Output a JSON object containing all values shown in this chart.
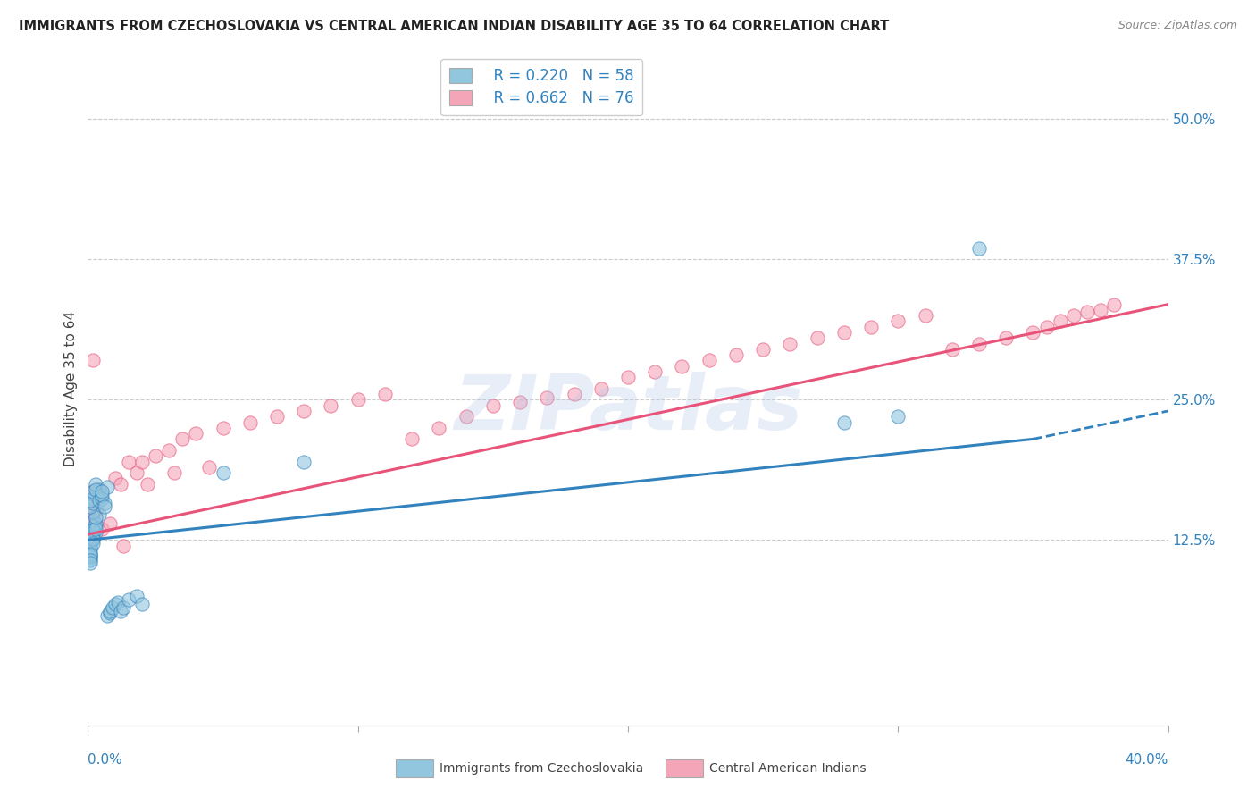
{
  "title": "IMMIGRANTS FROM CZECHOSLOVAKIA VS CENTRAL AMERICAN INDIAN DISABILITY AGE 35 TO 64 CORRELATION CHART",
  "source": "Source: ZipAtlas.com",
  "ylabel": "Disability Age 35 to 64",
  "xlim": [
    0.0,
    0.4
  ],
  "ylim": [
    -0.04,
    0.56
  ],
  "yticks_right": [
    0.125,
    0.25,
    0.375,
    0.5
  ],
  "yticklabels_right": [
    "12.5%",
    "25.0%",
    "37.5%",
    "50.0%"
  ],
  "legend_r1": "R = 0.220",
  "legend_n1": "N = 58",
  "legend_r2": "R = 0.662",
  "legend_n2": "N = 76",
  "color_blue": "#92c5de",
  "color_pink": "#f4a6b8",
  "line_color_blue": "#3182bd",
  "line_color_pink": "#e8537a",
  "watermark": "ZIPatlas",
  "background_color": "#ffffff",
  "grid_color": "#cccccc",
  "label1": "Immigrants from Czechoslovakia",
  "label2": "Central American Indians",
  "scatter1_x": [
    0.001,
    0.002,
    0.001,
    0.003,
    0.002,
    0.001,
    0.002,
    0.002,
    0.003,
    0.001,
    0.003,
    0.001,
    0.002,
    0.001,
    0.002,
    0.001,
    0.002,
    0.002,
    0.003,
    0.001,
    0.004,
    0.001,
    0.002,
    0.001,
    0.003,
    0.001,
    0.002,
    0.002,
    0.003,
    0.001,
    0.004,
    0.002,
    0.003,
    0.001,
    0.003,
    0.004,
    0.005,
    0.006,
    0.005,
    0.007,
    0.006,
    0.005,
    0.007,
    0.008,
    0.008,
    0.009,
    0.01,
    0.011,
    0.012,
    0.013,
    0.015,
    0.018,
    0.02,
    0.05,
    0.08,
    0.28,
    0.3,
    0.33
  ],
  "scatter1_y": [
    0.13,
    0.135,
    0.115,
    0.138,
    0.142,
    0.118,
    0.125,
    0.127,
    0.132,
    0.108,
    0.14,
    0.112,
    0.128,
    0.11,
    0.134,
    0.119,
    0.126,
    0.122,
    0.135,
    0.111,
    0.148,
    0.113,
    0.15,
    0.107,
    0.145,
    0.155,
    0.162,
    0.158,
    0.165,
    0.16,
    0.17,
    0.168,
    0.175,
    0.105,
    0.17,
    0.16,
    0.162,
    0.158,
    0.165,
    0.172,
    0.155,
    0.168,
    0.058,
    0.06,
    0.062,
    0.065,
    0.068,
    0.07,
    0.062,
    0.065,
    0.072,
    0.075,
    0.068,
    0.185,
    0.195,
    0.23,
    0.235,
    0.385
  ],
  "scatter2_x": [
    0.001,
    0.002,
    0.001,
    0.003,
    0.002,
    0.001,
    0.002,
    0.002,
    0.003,
    0.001,
    0.003,
    0.001,
    0.002,
    0.001,
    0.002,
    0.001,
    0.002,
    0.002,
    0.003,
    0.001,
    0.004,
    0.001,
    0.002,
    0.001,
    0.01,
    0.012,
    0.015,
    0.018,
    0.02,
    0.025,
    0.03,
    0.035,
    0.04,
    0.05,
    0.06,
    0.07,
    0.08,
    0.09,
    0.1,
    0.11,
    0.12,
    0.13,
    0.14,
    0.15,
    0.16,
    0.17,
    0.18,
    0.19,
    0.2,
    0.21,
    0.22,
    0.23,
    0.24,
    0.25,
    0.26,
    0.27,
    0.28,
    0.29,
    0.3,
    0.31,
    0.32,
    0.33,
    0.34,
    0.35,
    0.355,
    0.36,
    0.365,
    0.37,
    0.375,
    0.38,
    0.005,
    0.008,
    0.013,
    0.022,
    0.032,
    0.045
  ],
  "scatter2_y": [
    0.148,
    0.162,
    0.138,
    0.152,
    0.168,
    0.142,
    0.155,
    0.145,
    0.16,
    0.132,
    0.165,
    0.135,
    0.148,
    0.13,
    0.155,
    0.14,
    0.152,
    0.143,
    0.16,
    0.138,
    0.17,
    0.135,
    0.285,
    0.128,
    0.18,
    0.175,
    0.195,
    0.185,
    0.195,
    0.2,
    0.205,
    0.215,
    0.22,
    0.225,
    0.23,
    0.235,
    0.24,
    0.245,
    0.25,
    0.255,
    0.215,
    0.225,
    0.235,
    0.245,
    0.248,
    0.252,
    0.255,
    0.26,
    0.27,
    0.275,
    0.28,
    0.285,
    0.29,
    0.295,
    0.3,
    0.305,
    0.31,
    0.315,
    0.32,
    0.325,
    0.295,
    0.3,
    0.305,
    0.31,
    0.315,
    0.32,
    0.325,
    0.328,
    0.33,
    0.335,
    0.135,
    0.14,
    0.12,
    0.175,
    0.185,
    0.19
  ],
  "trendline1_x": [
    0.0,
    0.35
  ],
  "trendline1_y": [
    0.125,
    0.215
  ],
  "trendline2_x": [
    0.0,
    0.4
  ],
  "trendline2_y": [
    0.13,
    0.335
  ]
}
